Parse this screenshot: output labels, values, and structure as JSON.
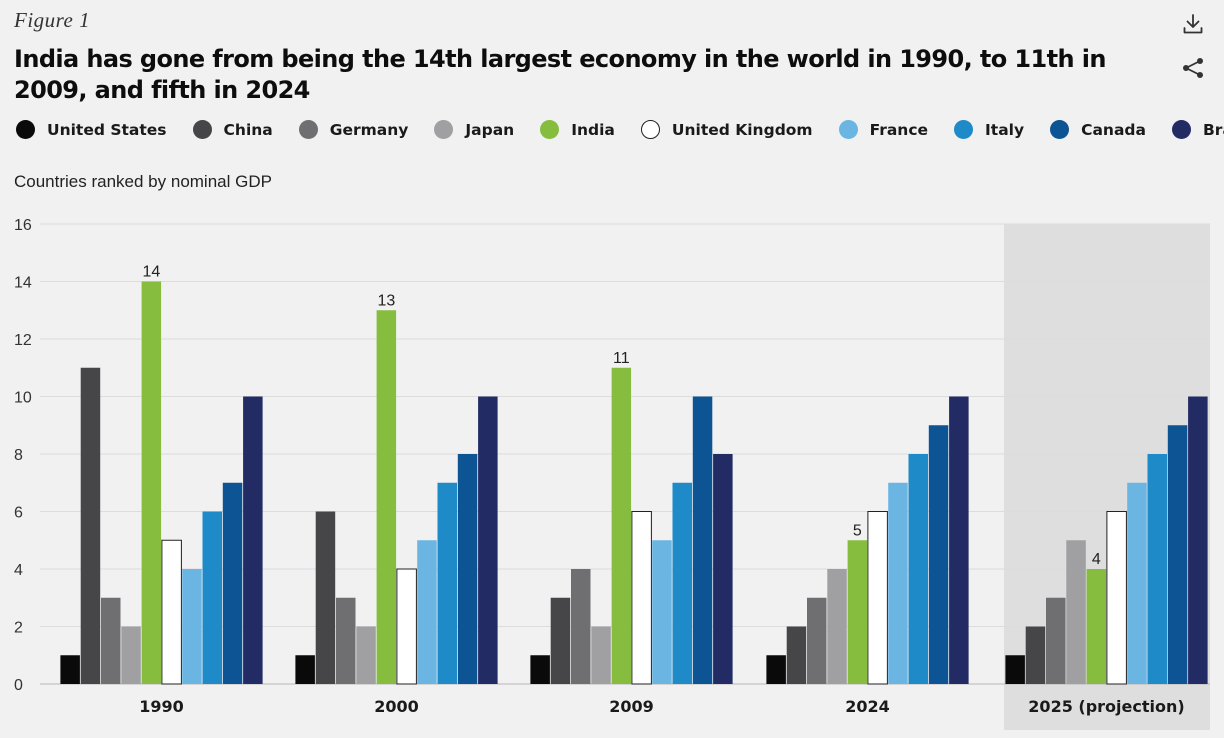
{
  "header": {
    "figure_label": "Figure 1",
    "title": "India has gone from being the 14th largest economy in the world in 1990, to 11th in 2009, and fifth in 2024"
  },
  "icons": {
    "download": "download-icon",
    "share": "share-icon"
  },
  "colors": {
    "United States": "#0a0a0a",
    "China": "#464648",
    "Germany": "#6f6f71",
    "Japan": "#a0a0a2",
    "India": "#86bd3f",
    "United Kingdom": "#ffffff",
    "France": "#6bb5e3",
    "Italy": "#1f8ac8",
    "Canada": "#0c5494",
    "Brazil": "#222b63",
    "gridline": "#dcdcdd",
    "projection_bg": "#dedede",
    "background": "#f1f1f2"
  },
  "chart_data": {
    "type": "bar",
    "title": "India has gone from being the 14th largest economy in the world in 1990, to 11th in 2009, and fifth in 2024",
    "subtitle": "Countries ranked by nominal GDP",
    "xlabel": "",
    "ylabel": "",
    "ylim": [
      0,
      16
    ],
    "yticks": [
      0,
      2,
      4,
      6,
      8,
      10,
      12,
      14,
      16
    ],
    "grid": true,
    "legend_position": "top",
    "categories": [
      "1990",
      "2000",
      "2009",
      "2024",
      "2025 (projection)"
    ],
    "highlighted_category": "2025 (projection)",
    "series": [
      {
        "name": "United States",
        "values": [
          1,
          1,
          1,
          1,
          1
        ]
      },
      {
        "name": "China",
        "values": [
          11,
          6,
          3,
          2,
          2
        ]
      },
      {
        "name": "Germany",
        "values": [
          3,
          3,
          4,
          3,
          3
        ]
      },
      {
        "name": "Japan",
        "values": [
          2,
          2,
          2,
          4,
          5
        ]
      },
      {
        "name": "India",
        "values": [
          14,
          13,
          11,
          5,
          4
        ]
      },
      {
        "name": "United Kingdom",
        "values": [
          5,
          4,
          6,
          6,
          6
        ]
      },
      {
        "name": "France",
        "values": [
          4,
          5,
          5,
          7,
          7
        ]
      },
      {
        "name": "Italy",
        "values": [
          6,
          7,
          7,
          8,
          8
        ]
      },
      {
        "name": "Canada",
        "values": [
          7,
          8,
          10,
          9,
          9
        ]
      },
      {
        "name": "Brazil",
        "values": [
          10,
          10,
          8,
          10,
          10
        ]
      }
    ],
    "data_labels": [
      {
        "series": "India",
        "category": "1990",
        "text": "14"
      },
      {
        "series": "India",
        "category": "2000",
        "text": "13"
      },
      {
        "series": "India",
        "category": "2009",
        "text": "11"
      },
      {
        "series": "India",
        "category": "2024",
        "text": "5"
      },
      {
        "series": "India",
        "category": "2025 (projection)",
        "text": "4"
      }
    ]
  }
}
